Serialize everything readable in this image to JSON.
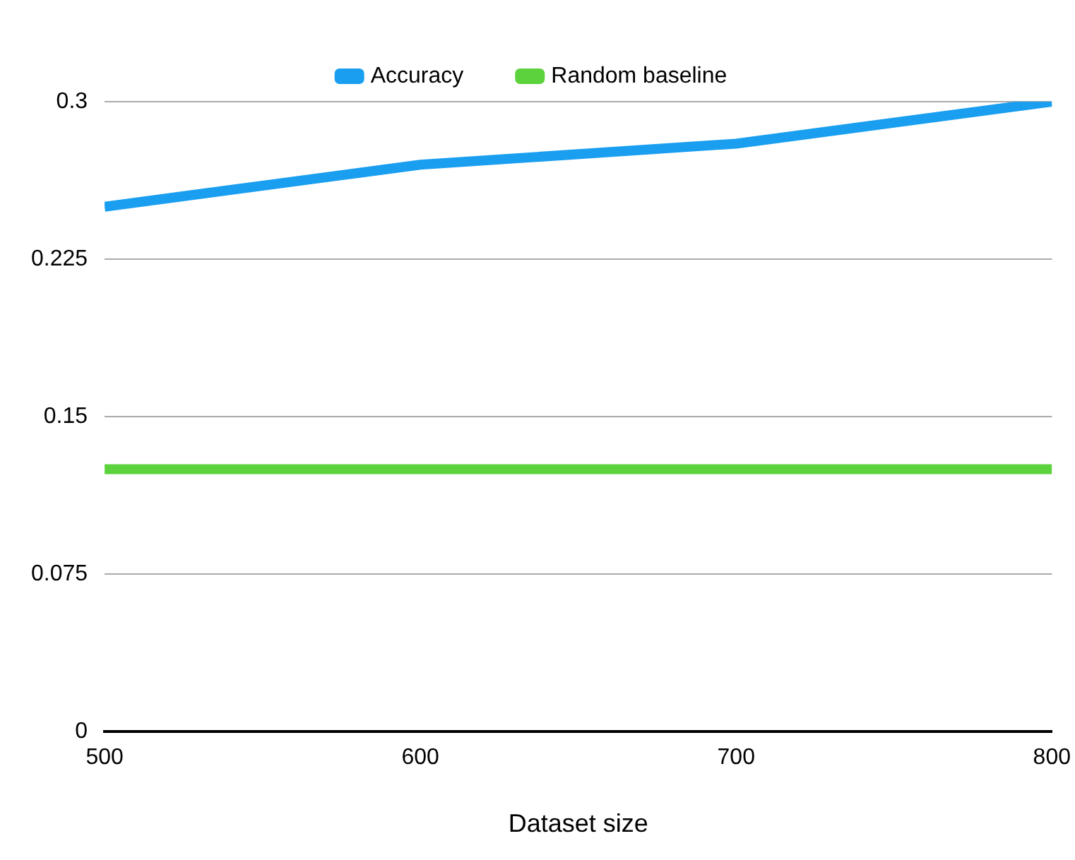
{
  "chart_data": {
    "type": "line",
    "xlabel": "Dataset size",
    "x": [
      500,
      600,
      700,
      800
    ],
    "xlim": [
      500,
      800
    ],
    "xticks": [
      500,
      600,
      700,
      800
    ],
    "ylim": [
      0,
      0.3
    ],
    "yticks": [
      0,
      0.075,
      0.15,
      0.225,
      0.3
    ],
    "grid": "y",
    "legend": "top",
    "marker": "none",
    "line_style": "solid",
    "series": [
      {
        "name": "Accuracy",
        "color": "#1a9ff0",
        "values": [
          0.25,
          0.27,
          0.28,
          0.3
        ]
      },
      {
        "name": "Random baseline",
        "color": "#5cd23c",
        "values": [
          0.125,
          0.125,
          0.125,
          0.125
        ]
      }
    ]
  }
}
